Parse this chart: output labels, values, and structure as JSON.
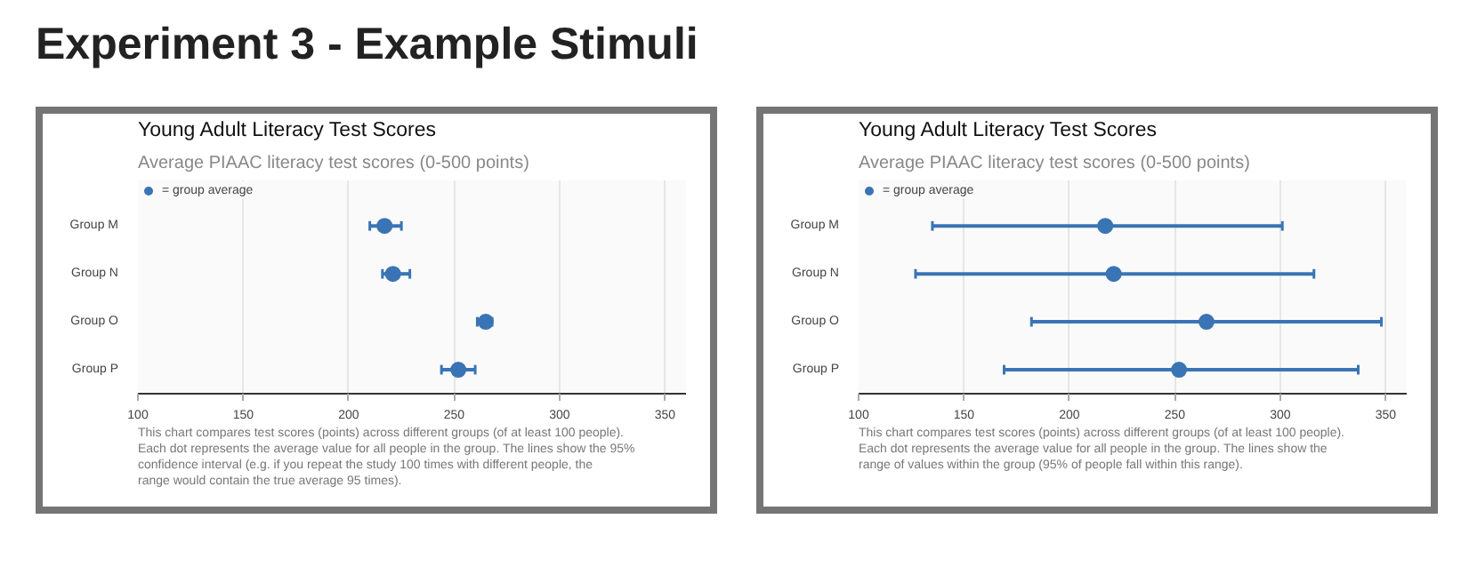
{
  "chart_data": [
    {
      "type": "scatter",
      "title": "Young Adult Literacy Test Scores",
      "subtitle": "Average PIAAC literacy test scores (0-500 points)",
      "categories": [
        "Group M",
        "Group N",
        "Group O",
        "Group P"
      ],
      "orientation": "horizontal",
      "series": [
        {
          "name": "= group average",
          "color": "#3a74b4",
          "values": [
            217,
            221,
            265,
            252
          ],
          "errors": [
            [
              210,
              225
            ],
            [
              216,
              229
            ],
            [
              261,
              268
            ],
            [
              244,
              260
            ]
          ]
        }
      ],
      "xlim": [
        100,
        360
      ],
      "xticks": [
        100,
        150,
        200,
        250,
        300,
        350
      ],
      "grid": "x",
      "legend": "top left",
      "marker": "circle",
      "annotations": [
        "Experiment 3 - Example Stimuli",
        "This chart compares test scores (points) across different groups (of at least 100 people). Each dot represents the average value for all people in the group. The lines show the 95% confidence interval (e.g. if you repeat the study 100 times with different people, the range would contain the true average 95 times)."
      ]
    },
    {
      "type": "scatter",
      "title": "Young Adult Literacy Test Scores",
      "subtitle": "Average PIAAC literacy test scores (0-500 points)",
      "categories": [
        "Group M",
        "Group N",
        "Group O",
        "Group P"
      ],
      "orientation": "horizontal",
      "series": [
        {
          "name": "= group average",
          "color": "#3a74b4",
          "values": [
            217,
            221,
            265,
            252
          ],
          "errors": [
            [
              135,
              301
            ],
            [
              127,
              316
            ],
            [
              182,
              348
            ],
            [
              169,
              337
            ]
          ]
        }
      ],
      "xlim": [
        100,
        360
      ],
      "xticks": [
        100,
        150,
        200,
        250,
        300,
        350
      ],
      "grid": "x",
      "legend": "top left",
      "marker": "circle",
      "annotations": [
        "This chart compares test scores (points) across different groups (of at least 100 people). Each dot represents the average value for all people in the group. The lines show the range of values within the group (95% of people fall within this range)."
      ]
    }
  ]
}
